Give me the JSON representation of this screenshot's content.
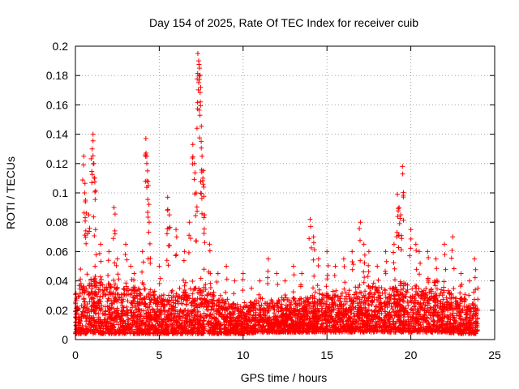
{
  "chart_data": {
    "type": "scatter",
    "title": "Day 154 of 2025, Rate Of TEC Index for receiver cuib",
    "xlabel": "GPS time / hours",
    "ylabel": "ROTI / TECUs",
    "xlim": [
      0,
      25
    ],
    "ylim": [
      0,
      0.2
    ],
    "xticks": [
      0,
      5,
      10,
      15,
      20,
      25
    ],
    "xtick_labels": [
      "0",
      "5",
      "10",
      "15",
      "20",
      "25"
    ],
    "yticks": [
      0,
      0.02,
      0.04,
      0.06,
      0.08,
      0.1,
      0.12,
      0.14,
      0.16,
      0.18,
      0.2
    ],
    "ytick_labels": [
      "0",
      "0.02",
      "0.04",
      "0.06",
      "0.08",
      "0.1",
      "0.12",
      "0.14",
      "0.16",
      "0.18",
      "0.2"
    ],
    "grid": true,
    "marker": "+",
    "color": "#ff0000",
    "series": [
      {
        "name": "ROTI",
        "x": [
          0.1,
          0.3,
          0.5,
          0.55,
          0.6,
          0.8,
          1.0,
          1.05,
          1.1,
          1.15,
          1.2,
          1.5,
          2.0,
          2.3,
          2.5,
          3.0,
          3.3,
          3.5,
          4.0,
          4.2,
          4.25,
          4.3,
          4.35,
          4.4,
          5.0,
          5.5,
          5.6,
          6.0,
          6.5,
          6.8,
          7.0,
          7.1,
          7.2,
          7.3,
          7.35,
          7.4,
          7.45,
          7.5,
          7.55,
          7.6,
          7.7,
          8.0,
          8.5,
          9.0,
          9.5,
          10.0,
          10.5,
          11.0,
          11.5,
          12.0,
          12.5,
          13.0,
          13.5,
          14.0,
          14.2,
          14.5,
          15.0,
          15.5,
          16.0,
          16.5,
          17.0,
          17.2,
          17.5,
          18.0,
          18.5,
          19.0,
          19.2,
          19.3,
          19.4,
          19.5,
          20.0,
          20.3,
          20.5,
          21.0,
          21.5,
          22.0,
          22.5,
          23.0,
          23.5,
          23.8,
          24.0
        ],
        "y": [
          0.022,
          0.048,
          0.125,
          0.1,
          0.095,
          0.085,
          0.13,
          0.14,
          0.12,
          0.11,
          0.075,
          0.065,
          0.06,
          0.09,
          0.055,
          0.065,
          0.05,
          0.045,
          0.06,
          0.137,
          0.125,
          0.115,
          0.105,
          0.08,
          0.05,
          0.097,
          0.085,
          0.075,
          0.06,
          0.08,
          0.133,
          0.12,
          0.1,
          0.195,
          0.19,
          0.185,
          0.162,
          0.135,
          0.125,
          0.11,
          0.085,
          0.065,
          0.045,
          0.05,
          0.04,
          0.045,
          0.035,
          0.04,
          0.055,
          0.045,
          0.04,
          0.05,
          0.045,
          0.082,
          0.07,
          0.055,
          0.06,
          0.05,
          0.055,
          0.06,
          0.08,
          0.065,
          0.06,
          0.05,
          0.06,
          0.065,
          0.099,
          0.09,
          0.085,
          0.118,
          0.075,
          0.065,
          0.06,
          0.06,
          0.055,
          0.065,
          0.07,
          0.045,
          0.04,
          0.055,
          0.035
        ]
      }
    ],
    "dense_band": {
      "x": [
        0,
        0.5,
        1,
        2,
        3,
        4,
        5,
        6,
        7,
        8,
        9,
        10,
        11,
        12,
        13,
        14,
        15,
        16,
        17,
        18,
        19,
        20,
        21,
        22,
        23,
        24
      ],
      "lower": [
        0.004,
        0.004,
        0.004,
        0.004,
        0.004,
        0.004,
        0.004,
        0.004,
        0.004,
        0.004,
        0.004,
        0.004,
        0.005,
        0.005,
        0.005,
        0.005,
        0.005,
        0.005,
        0.005,
        0.005,
        0.005,
        0.005,
        0.005,
        0.005,
        0.004,
        0.004
      ],
      "upper": [
        0.035,
        0.045,
        0.05,
        0.045,
        0.04,
        0.038,
        0.035,
        0.035,
        0.045,
        0.04,
        0.03,
        0.028,
        0.03,
        0.03,
        0.03,
        0.032,
        0.035,
        0.035,
        0.04,
        0.04,
        0.045,
        0.04,
        0.042,
        0.04,
        0.035,
        0.03
      ]
    }
  }
}
